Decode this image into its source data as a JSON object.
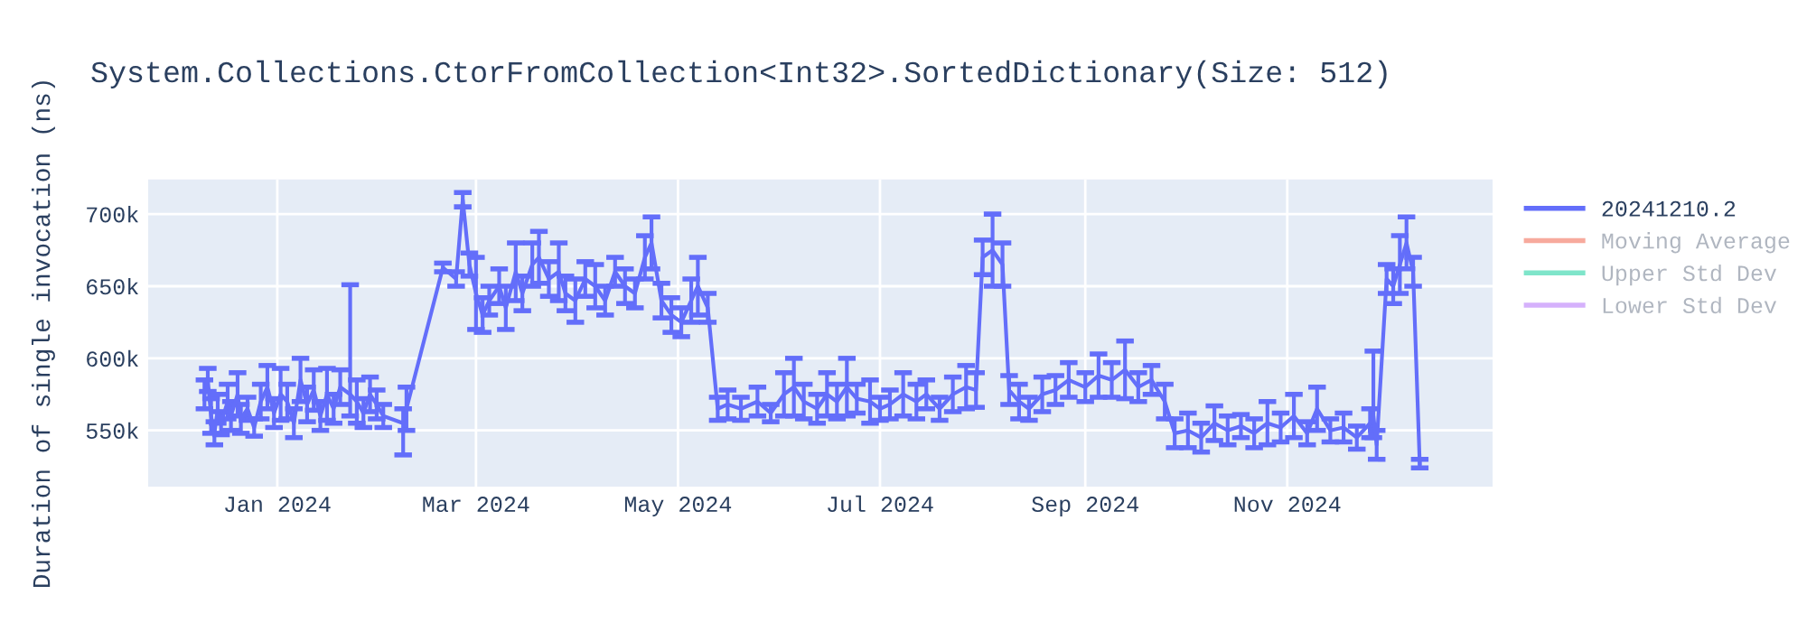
{
  "chart_data": {
    "type": "line",
    "title": "System.Collections.CtorFromCollection<Int32>.SortedDictionary(Size: 512)",
    "ylabel": "Duration of single invocation (ns)",
    "x": [
      "2023-12-10",
      "2023-12-11",
      "2023-12-12",
      "2023-12-13",
      "2023-12-14",
      "2023-12-15",
      "2023-12-17",
      "2023-12-18",
      "2023-12-20",
      "2023-12-21",
      "2023-12-23",
      "2023-12-25",
      "2023-12-27",
      "2023-12-29",
      "2023-12-31",
      "2024-01-02",
      "2024-01-04",
      "2024-01-06",
      "2024-01-08",
      "2024-01-10",
      "2024-01-12",
      "2024-01-14",
      "2024-01-16",
      "2024-01-18",
      "2024-01-20",
      "2024-01-23",
      "2024-01-25",
      "2024-01-27",
      "2024-01-29",
      "2024-01-31",
      "2024-02-02",
      "2024-02-08",
      "2024-02-09",
      "2024-02-20",
      "2024-02-24",
      "2024-02-26",
      "2024-02-28",
      "2024-03-01",
      "2024-03-03",
      "2024-03-05",
      "2024-03-08",
      "2024-03-10",
      "2024-03-13",
      "2024-03-15",
      "2024-03-18",
      "2024-03-20",
      "2024-03-23",
      "2024-03-26",
      "2024-03-28",
      "2024-03-31",
      "2024-04-03",
      "2024-04-06",
      "2024-04-09",
      "2024-04-12",
      "2024-04-15",
      "2024-04-18",
      "2024-04-21",
      "2024-04-23",
      "2024-04-26",
      "2024-04-29",
      "2024-05-02",
      "2024-05-05",
      "2024-05-07",
      "2024-05-10",
      "2024-05-13",
      "2024-05-16",
      "2024-05-20",
      "2024-05-25",
      "2024-05-29",
      "2024-06-02",
      "2024-06-05",
      "2024-06-08",
      "2024-06-12",
      "2024-06-15",
      "2024-06-18",
      "2024-06-21",
      "2024-06-24",
      "2024-06-28",
      "2024-07-01",
      "2024-07-04",
      "2024-07-08",
      "2024-07-12",
      "2024-07-15",
      "2024-07-19",
      "2024-07-23",
      "2024-07-27",
      "2024-07-30",
      "2024-08-01",
      "2024-08-04",
      "2024-08-07",
      "2024-08-09",
      "2024-08-12",
      "2024-08-15",
      "2024-08-19",
      "2024-08-23",
      "2024-08-27",
      "2024-09-01",
      "2024-09-05",
      "2024-09-09",
      "2024-09-13",
      "2024-09-17",
      "2024-09-21",
      "2024-09-25",
      "2024-09-28",
      "2024-10-02",
      "2024-10-06",
      "2024-10-10",
      "2024-10-14",
      "2024-10-18",
      "2024-10-22",
      "2024-10-26",
      "2024-10-30",
      "2024-11-03",
      "2024-11-07",
      "2024-11-10",
      "2024-11-14",
      "2024-11-18",
      "2024-11-22",
      "2024-11-26",
      "2024-11-27",
      "2024-11-28",
      "2024-12-01",
      "2024-12-03",
      "2024-12-05",
      "2024-12-07",
      "2024-12-09",
      "2024-12-11"
    ],
    "series": [
      {
        "name": "20241210.2",
        "color": "#636efa",
        "values": [
          575000,
          585000,
          560000,
          548000,
          565000,
          555000,
          570000,
          560000,
          575000,
          558000,
          565000,
          552000,
          570000,
          580000,
          562000,
          575000,
          570000,
          555000,
          585000,
          568000,
          578000,
          560000,
          575000,
          565000,
          580000,
          575000,
          570000,
          562000,
          575000,
          568000,
          560000,
          555000,
          565000,
          663000,
          655000,
          710000,
          665000,
          645000,
          630000,
          640000,
          650000,
          635000,
          660000,
          645000,
          665000,
          670000,
          655000,
          660000,
          645000,
          640000,
          655000,
          650000,
          640000,
          660000,
          650000,
          645000,
          670000,
          680000,
          640000,
          630000,
          625000,
          640000,
          650000,
          635000,
          565000,
          568000,
          565000,
          570000,
          562000,
          575000,
          580000,
          570000,
          565000,
          575000,
          570000,
          580000,
          572000,
          570000,
          565000,
          568000,
          575000,
          570000,
          575000,
          565000,
          575000,
          580000,
          578000,
          670000,
          675000,
          665000,
          578000,
          570000,
          565000,
          575000,
          578000,
          585000,
          580000,
          588000,
          585000,
          592000,
          580000,
          585000,
          570000,
          548000,
          550000,
          545000,
          555000,
          550000,
          553000,
          548000,
          555000,
          552000,
          560000,
          548000,
          565000,
          550000,
          552000,
          545000,
          555000,
          560000,
          540000,
          655000,
          650000,
          665000,
          680000,
          660000,
          527000
        ],
        "errors": [
          10000,
          8000,
          12000,
          8000,
          10000,
          8000,
          12000,
          10000,
          15000,
          10000,
          8000,
          6000,
          12000,
          15000,
          10000,
          18000,
          12000,
          10000,
          15000,
          12000,
          14000,
          10000,
          18000,
          10000,
          12000,
          [
            560000,
            651000
          ],
          15000,
          10000,
          12000,
          10000,
          8000,
          [
            533000,
            565000
          ],
          15000,
          3000,
          5000,
          5000,
          8000,
          25000,
          12000,
          10000,
          12000,
          15000,
          20000,
          12000,
          15000,
          18000,
          12000,
          20000,
          12000,
          15000,
          12000,
          15000,
          10000,
          10000,
          12000,
          10000,
          15000,
          18000,
          12000,
          12000,
          10000,
          15000,
          20000,
          10000,
          8000,
          10000,
          8000,
          10000,
          6000,
          15000,
          20000,
          12000,
          10000,
          15000,
          12000,
          20000,
          10000,
          15000,
          8000,
          10000,
          15000,
          12000,
          10000,
          8000,
          12000,
          15000,
          12000,
          12000,
          25000,
          15000,
          10000,
          12000,
          8000,
          12000,
          10000,
          12000,
          10000,
          15000,
          12000,
          20000,
          10000,
          10000,
          12000,
          10000,
          12000,
          10000,
          12000,
          10000,
          8000,
          10000,
          15000,
          10000,
          15000,
          8000,
          15000,
          8000,
          10000,
          8000,
          10000,
          [
            545000,
            605000
          ],
          10000,
          10000,
          12000,
          20000,
          18000,
          10000,
          3000
        ]
      },
      {
        "name": "Moving Average",
        "color": "#ef553b",
        "values": [
          null,
          null,
          null,
          null,
          null,
          null,
          null,
          null,
          null,
          null,
          null,
          null,
          null,
          null,
          null,
          null,
          null,
          null,
          null,
          null,
          null,
          null,
          null,
          null,
          null,
          null,
          null,
          null,
          null,
          null,
          null,
          null,
          null,
          null,
          null,
          null,
          null,
          null,
          null,
          null,
          null,
          null,
          null,
          null,
          null,
          null,
          null,
          null,
          null,
          null,
          null,
          null,
          null,
          null,
          null,
          null,
          null,
          null,
          null,
          null,
          null,
          null,
          null,
          null,
          null,
          null,
          null,
          null,
          null,
          null,
          null,
          null,
          null,
          null,
          null,
          null,
          null,
          null,
          null,
          null,
          null,
          null,
          null,
          null,
          null,
          null,
          null,
          null,
          null,
          null,
          null,
          null,
          null,
          null,
          null,
          null,
          null,
          null,
          null,
          null,
          null,
          null,
          null,
          null,
          null,
          null,
          null,
          null,
          null,
          null,
          null,
          null,
          null,
          null,
          null,
          null,
          null,
          null,
          null,
          null,
          null,
          null,
          null,
          null,
          null,
          null,
          null
        ]
      },
      {
        "name": "Upper Std Dev",
        "color": "#00cc96",
        "values": [
          null,
          null,
          null,
          null,
          null,
          null,
          null,
          null,
          null,
          null,
          null,
          null,
          null,
          null,
          null,
          null,
          null,
          null,
          null,
          null,
          null,
          null,
          null,
          null,
          null,
          null,
          null,
          null,
          null,
          null,
          null,
          null,
          null,
          null,
          null,
          null,
          null,
          null,
          null,
          null,
          null,
          null,
          null,
          null,
          null,
          null,
          null,
          null,
          null,
          null,
          null,
          null,
          null,
          null,
          null,
          null,
          null,
          null,
          null,
          null,
          null,
          null,
          null,
          null,
          null,
          null,
          null,
          null,
          null,
          null,
          null,
          null,
          null,
          null,
          null,
          null,
          null,
          null,
          null,
          null,
          null,
          null,
          null,
          null,
          null,
          null,
          null,
          null,
          null,
          null,
          null,
          null,
          null,
          null,
          null,
          null,
          null,
          null,
          null,
          null,
          null,
          null,
          null,
          null,
          null,
          null,
          null,
          null,
          null,
          null,
          null,
          null,
          null,
          null,
          null,
          null,
          null,
          null,
          null,
          null,
          null,
          null,
          null,
          null,
          null,
          null,
          null
        ]
      },
      {
        "name": "Lower Std Dev",
        "color": "#ab63fa",
        "values": [
          null,
          null,
          null,
          null,
          null,
          null,
          null,
          null,
          null,
          null,
          null,
          null,
          null,
          null,
          null,
          null,
          null,
          null,
          null,
          null,
          null,
          null,
          null,
          null,
          null,
          null,
          null,
          null,
          null,
          null,
          null,
          null,
          null,
          null,
          null,
          null,
          null,
          null,
          null,
          null,
          null,
          null,
          null,
          null,
          null,
          null,
          null,
          null,
          null,
          null,
          null,
          null,
          null,
          null,
          null,
          null,
          null,
          null,
          null,
          null,
          null,
          null,
          null,
          null,
          null,
          null,
          null,
          null,
          null,
          null,
          null,
          null,
          null,
          null,
          null,
          null,
          null,
          null,
          null,
          null,
          null,
          null,
          null,
          null,
          null,
          null,
          null,
          null,
          null,
          null,
          null,
          null,
          null,
          null,
          null,
          null,
          null,
          null,
          null,
          null,
          null,
          null,
          null,
          null,
          null,
          null,
          null,
          null,
          null,
          null,
          null,
          null,
          null,
          null,
          null,
          null,
          null,
          null,
          null,
          null,
          null,
          null,
          null,
          null,
          null,
          null,
          null
        ]
      }
    ],
    "xlim": [
      "2023-11-23",
      "2025-01-02"
    ],
    "xticks": [
      {
        "value": "2024-01-01",
        "label": "Jan 2024"
      },
      {
        "value": "2024-03-01",
        "label": "Mar 2024"
      },
      {
        "value": "2024-05-01",
        "label": "May 2024"
      },
      {
        "value": "2024-07-01",
        "label": "Jul 2024"
      },
      {
        "value": "2024-09-01",
        "label": "Sep 2024"
      },
      {
        "value": "2024-11-01",
        "label": "Nov 2024"
      }
    ],
    "ylim": [
      511000,
      724000
    ],
    "yticks": [
      {
        "value": 550000,
        "label": "550k"
      },
      {
        "value": 600000,
        "label": "600k"
      },
      {
        "value": 650000,
        "label": "650k"
      },
      {
        "value": 700000,
        "label": "700k"
      }
    ],
    "grid": true,
    "legend": "top right"
  }
}
